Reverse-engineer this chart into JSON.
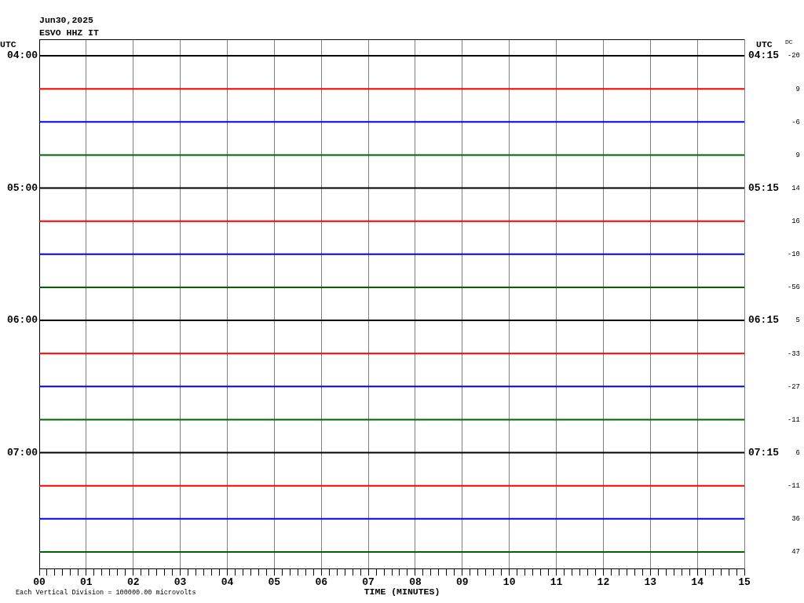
{
  "chart_data": {
    "type": "line",
    "title": "Jun30,2025",
    "subtitle": "ESVO HHZ IT",
    "xlabel": "TIME (MINUTES)",
    "ylabel": "UTC",
    "y2label": "UTC",
    "annotations": [
      "DC",
      "-20",
      "9",
      "-6",
      "9",
      "14",
      "16",
      "-10",
      "-56",
      "5",
      "-33",
      "-27",
      "-11",
      "6",
      "-11",
      "36",
      "47",
      "Each Vertical Division = 100000.00 microvolts"
    ],
    "x": [
      0,
      15
    ],
    "series": [
      {
        "color": "#000000",
        "values": [
          4,
          4
        ]
      },
      {
        "color": "#ff0000",
        "values": [
          4.25,
          4.25
        ]
      },
      {
        "color": "#0000ff",
        "values": [
          4.5,
          4.5
        ]
      },
      {
        "color": "#006400",
        "values": [
          4.75,
          4.75
        ]
      },
      {
        "color": "#000000",
        "values": [
          5,
          5
        ]
      },
      {
        "color": "#ff0000",
        "values": [
          5.25,
          5.25
        ]
      },
      {
        "color": "#0000ff",
        "values": [
          5.5,
          5.5
        ]
      },
      {
        "color": "#006400",
        "values": [
          5.75,
          5.75
        ]
      },
      {
        "color": "#000000",
        "values": [
          6,
          6
        ]
      },
      {
        "color": "#ff0000",
        "values": [
          6.25,
          6.25
        ]
      },
      {
        "color": "#0000ff",
        "values": [
          6.5,
          6.5
        ]
      },
      {
        "color": "#006400",
        "values": [
          6.75,
          6.75
        ]
      },
      {
        "color": "#000000",
        "values": [
          7,
          7
        ]
      },
      {
        "color": "#ff0000",
        "values": [
          7.25,
          7.25
        ]
      },
      {
        "color": "#0000ff",
        "values": [
          7.5,
          7.5
        ]
      },
      {
        "color": "#006400",
        "values": [
          7.75,
          7.75
        ]
      }
    ],
    "xlim": [
      0,
      15
    ],
    "xticks": [
      {
        "value": 0,
        "label": "00"
      },
      {
        "value": 0.167,
        "label": null
      },
      {
        "value": 0.333,
        "label": null
      },
      {
        "value": 0.5,
        "label": null
      },
      {
        "value": 0.667,
        "label": null
      },
      {
        "value": 0.833,
        "label": null
      },
      {
        "value": 1,
        "label": "01"
      },
      {
        "value": 1.167,
        "label": null
      },
      {
        "value": 1.333,
        "label": null
      },
      {
        "value": 1.5,
        "label": null
      },
      {
        "value": 1.667,
        "label": null
      },
      {
        "value": 1.833,
        "label": null
      },
      {
        "value": 2,
        "label": "02"
      },
      {
        "value": 2.167,
        "label": null
      },
      {
        "value": 2.333,
        "label": null
      },
      {
        "value": 2.5,
        "label": null
      },
      {
        "value": 2.667,
        "label": null
      },
      {
        "value": 2.833,
        "label": null
      },
      {
        "value": 3,
        "label": "03"
      },
      {
        "value": 3.167,
        "label": null
      },
      {
        "value": 3.333,
        "label": null
      },
      {
        "value": 3.5,
        "label": null
      },
      {
        "value": 3.667,
        "label": null
      },
      {
        "value": 3.833,
        "label": null
      },
      {
        "value": 4,
        "label": "04"
      },
      {
        "value": 4.167,
        "label": null
      },
      {
        "value": 4.333,
        "label": null
      },
      {
        "value": 4.5,
        "label": null
      },
      {
        "value": 4.667,
        "label": null
      },
      {
        "value": 4.833,
        "label": null
      },
      {
        "value": 5,
        "label": "05"
      },
      {
        "value": 5.167,
        "label": null
      },
      {
        "value": 5.333,
        "label": null
      },
      {
        "value": 5.5,
        "label": null
      },
      {
        "value": 5.667,
        "label": null
      },
      {
        "value": 5.833,
        "label": null
      },
      {
        "value": 6,
        "label": "06"
      },
      {
        "value": 6.167,
        "label": null
      },
      {
        "value": 6.333,
        "label": null
      },
      {
        "value": 6.5,
        "label": null
      },
      {
        "value": 6.667,
        "label": null
      },
      {
        "value": 6.833,
        "label": null
      },
      {
        "value": 7,
        "label": "07"
      },
      {
        "value": 7.167,
        "label": null
      },
      {
        "value": 7.333,
        "label": null
      },
      {
        "value": 7.5,
        "label": null
      },
      {
        "value": 7.667,
        "label": null
      },
      {
        "value": 7.833,
        "label": null
      },
      {
        "value": 8,
        "label": "08"
      },
      {
        "value": 8.167,
        "label": null
      },
      {
        "value": 8.333,
        "label": null
      },
      {
        "value": 8.5,
        "label": null
      },
      {
        "value": 8.667,
        "label": null
      },
      {
        "value": 8.833,
        "label": null
      },
      {
        "value": 9,
        "label": "09"
      },
      {
        "value": 9.167,
        "label": null
      },
      {
        "value": 9.333,
        "label": null
      },
      {
        "value": 9.5,
        "label": null
      },
      {
        "value": 9.667,
        "label": null
      },
      {
        "value": 9.833,
        "label": null
      },
      10,
      {
        "value": 10.167,
        "label": null
      },
      {
        "value": 10.333,
        "label": null
      },
      {
        "value": 10.5,
        "label": null
      },
      {
        "value": 10.667,
        "label": null
      },
      {
        "value": 10.833,
        "label": null
      },
      11,
      {
        "value": 11.167,
        "label": null
      },
      {
        "value": 11.333,
        "label": null
      },
      {
        "value": 11.5,
        "label": null
      },
      {
        "value": 11.667,
        "label": null
      },
      {
        "value": 11.833,
        "label": null
      },
      12,
      {
        "value": 12.167,
        "label": null
      },
      {
        "value": 12.333,
        "label": null
      },
      {
        "value": 12.5,
        "label": null
      },
      {
        "value": 12.667,
        "label": null
      },
      {
        "value": 12.833,
        "label": null
      },
      13,
      {
        "value": 13.167,
        "label": null
      },
      {
        "value": 13.333,
        "label": null
      },
      {
        "value": 13.5,
        "label": null
      },
      {
        "value": 13.667,
        "label": null
      },
      {
        "value": 13.833,
        "label": null
      },
      14,
      {
        "value": 14.167,
        "label": null
      },
      {
        "value": 14.333,
        "label": null
      },
      {
        "value": 14.5,
        "label": null
      },
      {
        "value": 14.667,
        "label": null
      },
      {
        "value": 14.833,
        "label": null
      },
      15
    ],
    "ylim": [
      7.875,
      3.875
    ],
    "yticks": [
      {
        "value": 4,
        "label": "04:00"
      },
      {
        "value": 5,
        "label": "05:00"
      },
      {
        "value": 6,
        "label": "06:00"
      },
      {
        "value": 7,
        "label": "07:00"
      }
    ],
    "y2lim": [
      8.125,
      4.125
    ],
    "y2ticks": [
      {
        "value": 4.25,
        "label": "04:15"
      },
      {
        "value": 5.25,
        "label": "05:15"
      },
      {
        "value": 6.25,
        "label": "06:15"
      },
      {
        "value": 7.25,
        "label": "07:15"
      }
    ],
    "grid": "x",
    "marker": "none"
  }
}
